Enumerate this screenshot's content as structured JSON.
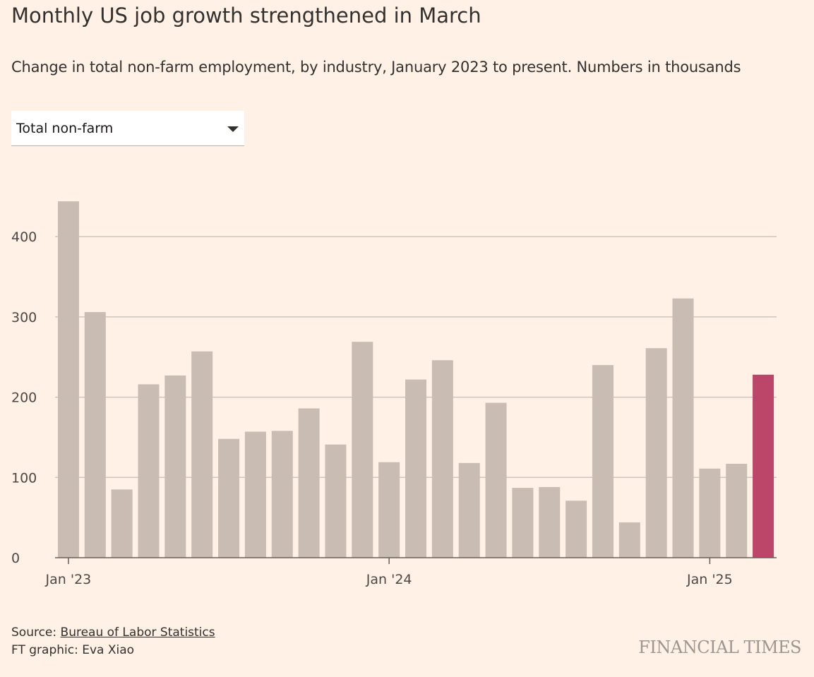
{
  "header": {
    "title": "Monthly US job growth strengthened in March",
    "subtitle": "Change in total non-farm employment, by industry, January 2023 to present. Numbers in thousands"
  },
  "selector": {
    "value": "Total non-farm",
    "icon": "chevron-down-icon"
  },
  "footer": {
    "source_prefix": "Source: ",
    "source_link": "Bureau of Labor Statistics",
    "credit": "FT graphic: Eva Xiao",
    "logo": "FINANCIAL TIMES"
  },
  "colors": {
    "bar": "#C8BCB3",
    "highlight": "#BC456A",
    "grid": "#CEC6BE",
    "axis": "#66605C"
  },
  "chart_data": {
    "type": "bar",
    "categories": [
      "Jan '23",
      "Feb '23",
      "Mar '23",
      "Apr '23",
      "May '23",
      "Jun '23",
      "Jul '23",
      "Aug '23",
      "Sep '23",
      "Oct '23",
      "Nov '23",
      "Dec '23",
      "Jan '24",
      "Feb '24",
      "Mar '24",
      "Apr '24",
      "May '24",
      "Jun '24",
      "Jul '24",
      "Aug '24",
      "Sep '24",
      "Oct '24",
      "Nov '24",
      "Dec '24",
      "Jan '25",
      "Feb '25",
      "Mar '25"
    ],
    "values": [
      444,
      306,
      85,
      216,
      227,
      257,
      148,
      157,
      158,
      186,
      141,
      269,
      119,
      222,
      246,
      118,
      193,
      87,
      88,
      71,
      240,
      44,
      261,
      323,
      111,
      117,
      228
    ],
    "highlight_index": 26,
    "x_tick_labels": [
      {
        "index": 0,
        "label": "Jan '23"
      },
      {
        "index": 12,
        "label": "Jan '24"
      },
      {
        "index": 24,
        "label": "Jan '25"
      }
    ],
    "y_ticks": [
      0,
      100,
      200,
      300,
      400
    ],
    "ylim": [
      0,
      450
    ],
    "grid": true,
    "xlabel": "",
    "ylabel": ""
  }
}
